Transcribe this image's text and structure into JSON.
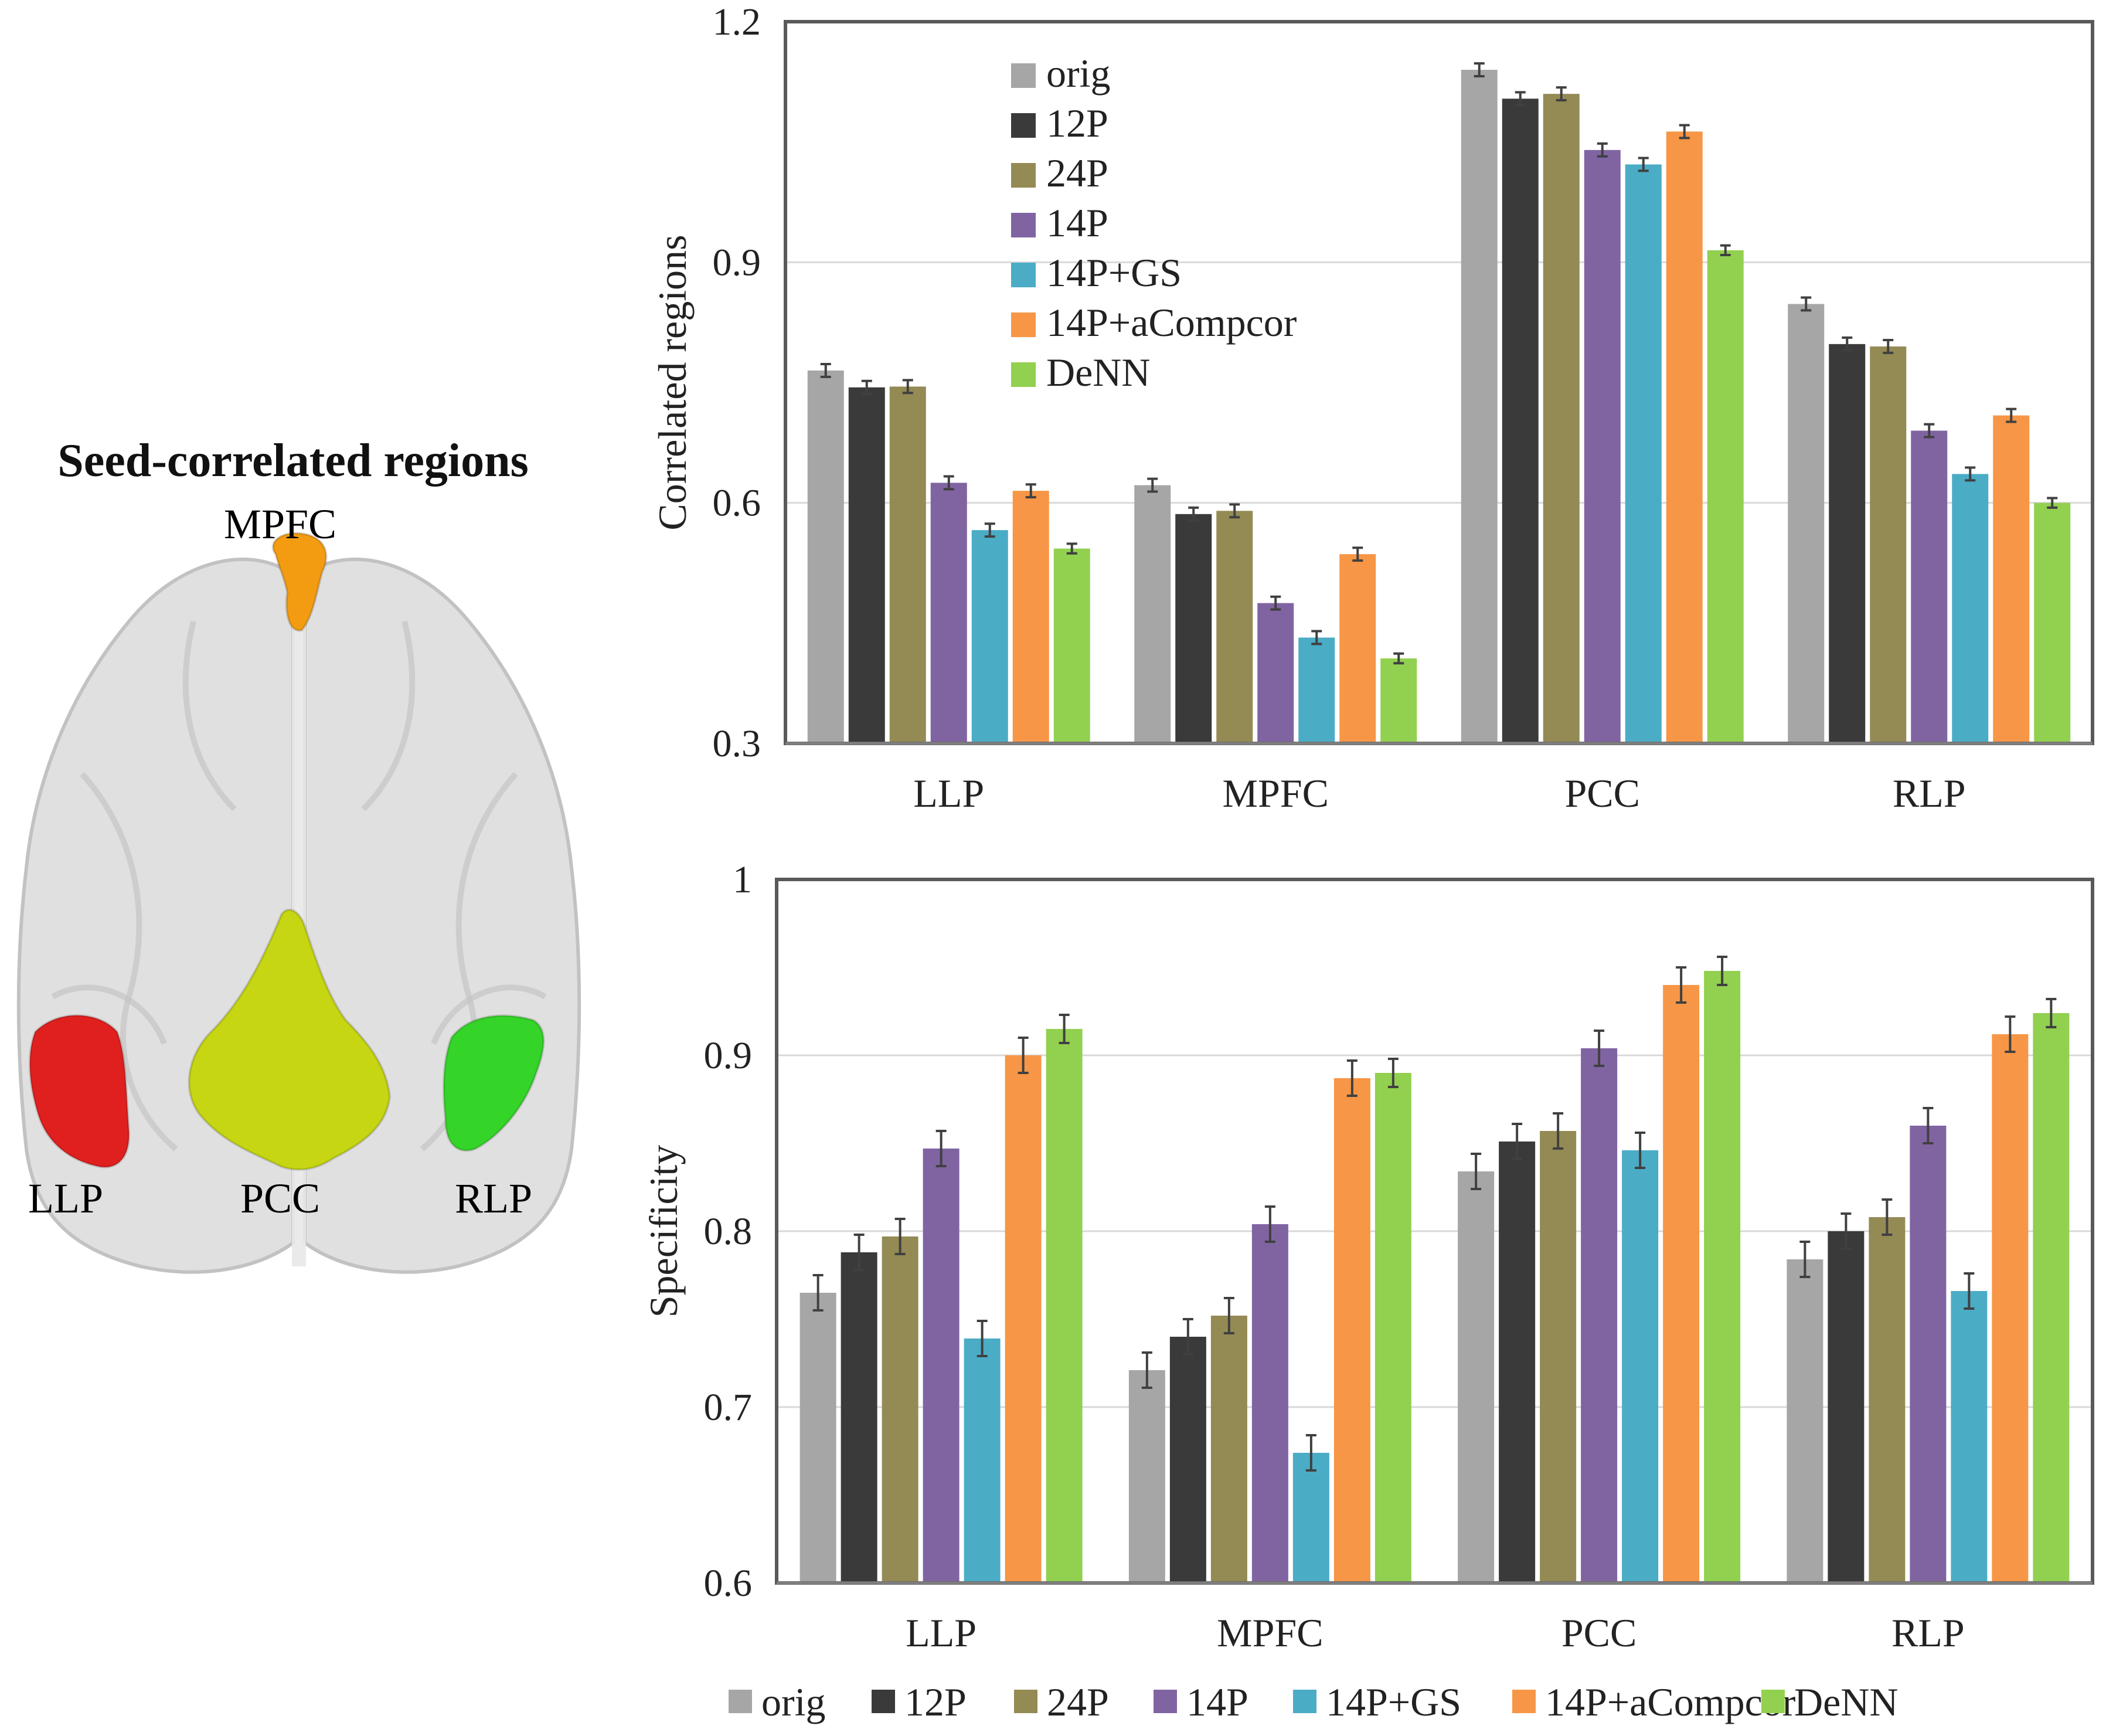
{
  "brain": {
    "title": "Seed-correlated regions",
    "labels": {
      "mpfc": "MPFC",
      "llp": "LLP",
      "pcc": "PCC",
      "rlp": "RLP"
    },
    "colors": {
      "mpfc": "#f39c12",
      "llp": "#e0201f",
      "pcc": "#c6d612",
      "rlp": "#34d428",
      "brain": "#d6d6d6"
    }
  },
  "legend_colors": [
    "#a6a6a6",
    "#3a3a3a",
    "#948a54",
    "#8064a2",
    "#4bacc6",
    "#f79646",
    "#92d050"
  ],
  "chart_data": [
    {
      "type": "bar",
      "title": "",
      "xlabel": "",
      "ylabel": "Correlated regions",
      "ylim": [
        0.3,
        1.2
      ],
      "yticks": [
        "0.3",
        "0.6",
        "0.9",
        "1.2"
      ],
      "grid": true,
      "legend": "top-left inside plot, vertical",
      "categories": [
        "LLP",
        "MPFC",
        "PCC",
        "RLP"
      ],
      "series": [
        {
          "name": "orig",
          "values": [
            0.765,
            0.622,
            1.14,
            0.848
          ],
          "error": [
            0.008,
            0.008,
            0.008,
            0.008
          ]
        },
        {
          "name": "12P",
          "values": [
            0.744,
            0.586,
            1.104,
            0.798
          ],
          "error": [
            0.008,
            0.008,
            0.008,
            0.008
          ]
        },
        {
          "name": "24P",
          "values": [
            0.745,
            0.59,
            1.11,
            0.795
          ],
          "error": [
            0.008,
            0.008,
            0.008,
            0.008
          ]
        },
        {
          "name": "14P",
          "values": [
            0.625,
            0.475,
            1.04,
            0.69
          ],
          "error": [
            0.008,
            0.008,
            0.008,
            0.008
          ]
        },
        {
          "name": "14P+GS",
          "values": [
            0.566,
            0.432,
            1.022,
            0.636
          ],
          "error": [
            0.008,
            0.008,
            0.008,
            0.008
          ]
        },
        {
          "name": "14P+aCompcor",
          "values": [
            0.615,
            0.536,
            1.063,
            0.709
          ],
          "error": [
            0.008,
            0.008,
            0.008,
            0.008
          ]
        },
        {
          "name": "DeNN",
          "values": [
            0.543,
            0.406,
            0.915,
            0.6
          ],
          "error": [
            0.006,
            0.006,
            0.006,
            0.006
          ]
        }
      ]
    },
    {
      "type": "bar",
      "title": "",
      "xlabel": "",
      "ylabel": "Specificity",
      "ylim": [
        0.6,
        1.0
      ],
      "yticks": [
        "0.6",
        "0.7",
        "0.8",
        "0.9",
        "1"
      ],
      "grid": true,
      "legend": "bottom, horizontal",
      "categories": [
        "LLP",
        "MPFC",
        "PCC",
        "RLP"
      ],
      "series": [
        {
          "name": "orig",
          "values": [
            0.765,
            0.721,
            0.834,
            0.784
          ],
          "error": [
            0.01,
            0.01,
            0.01,
            0.01
          ]
        },
        {
          "name": "12P",
          "values": [
            0.788,
            0.74,
            0.851,
            0.8
          ],
          "error": [
            0.01,
            0.01,
            0.01,
            0.01
          ]
        },
        {
          "name": "24P",
          "values": [
            0.797,
            0.752,
            0.857,
            0.808
          ],
          "error": [
            0.01,
            0.01,
            0.01,
            0.01
          ]
        },
        {
          "name": "14P",
          "values": [
            0.847,
            0.804,
            0.904,
            0.86
          ],
          "error": [
            0.01,
            0.01,
            0.01,
            0.01
          ]
        },
        {
          "name": "14P+GS",
          "values": [
            0.739,
            0.674,
            0.846,
            0.766
          ],
          "error": [
            0.01,
            0.01,
            0.01,
            0.01
          ]
        },
        {
          "name": "14P+aCompcor",
          "values": [
            0.9,
            0.887,
            0.94,
            0.912
          ],
          "error": [
            0.01,
            0.01,
            0.01,
            0.01
          ]
        },
        {
          "name": "DeNN",
          "values": [
            0.915,
            0.89,
            0.948,
            0.924
          ],
          "error": [
            0.008,
            0.008,
            0.008,
            0.008
          ]
        }
      ]
    }
  ]
}
